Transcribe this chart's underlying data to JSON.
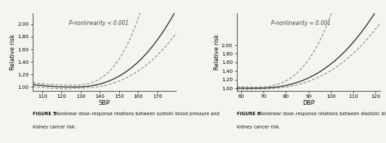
{
  "fig1": {
    "title_annotation": "P-nonlinearity < 0.001",
    "xlabel": "SBP",
    "ylabel": "Relative risk",
    "xlim": [
      105,
      180
    ],
    "ylim": [
      0.94,
      2.18
    ],
    "xticks": [
      110,
      120,
      130,
      140,
      150,
      160,
      170
    ],
    "yticks": [
      1.0,
      1.2,
      1.4,
      1.6,
      1.8,
      2.0
    ],
    "ref_x": 125,
    "caption_bold": "FIGURE 5",
    "caption_rest": " Nonlinear dose–response relations between systolic blood pressure and",
    "caption_line2": "kidney cancer risk."
  },
  "fig2": {
    "title_annotation": "P-nonlinearity = 0.001",
    "xlabel": "DBP",
    "ylabel": "Relative risk",
    "xlim": [
      58,
      122
    ],
    "ylim": [
      0.94,
      2.75
    ],
    "xticks": [
      60,
      70,
      80,
      90,
      100,
      110,
      120
    ],
    "yticks": [
      1.0,
      1.2,
      1.4,
      1.6,
      1.8,
      2.0
    ],
    "ref_x": 65,
    "caption_bold": "FIGURE 6",
    "caption_rest": " Nonlinear dose–response relations between diastolic blood pressure and",
    "caption_line2": "kidney cancer risk."
  },
  "line_color": "#3a3a3a",
  "ci_color": "#888888",
  "bg_color": "#f5f5f0",
  "text_color": "#444444"
}
